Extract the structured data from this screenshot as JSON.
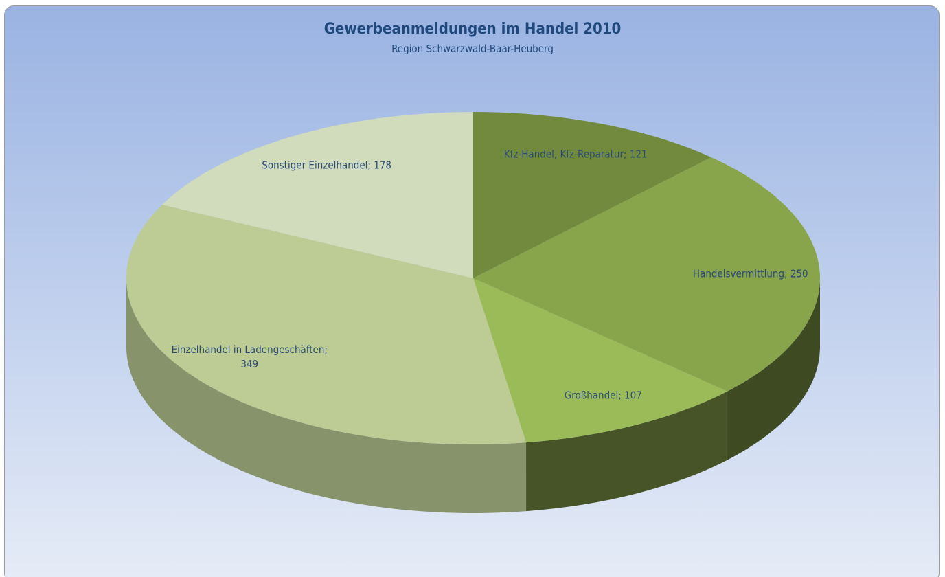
{
  "chart_data": {
    "type": "pie3d",
    "title": "Gewerbeanmeldungen im Handel 2010",
    "subtitle": "Region Schwarzwald-Baar-Heuberg",
    "values": [
      121,
      250,
      107,
      349,
      178
    ],
    "value_labels": [
      "Kfz-Handel, Kfz-Reparatur; 121",
      "Handelsvermittlung; 250",
      "Großhandel; 107",
      "Einzelhandel in Ladengeschäften; 349",
      "Sonstiger Einzelhandel; 178"
    ],
    "colors": [
      "#718a3e",
      "#88a54b",
      "#9bbb59",
      "#bccc94",
      "#d1dcbc"
    ]
  }
}
